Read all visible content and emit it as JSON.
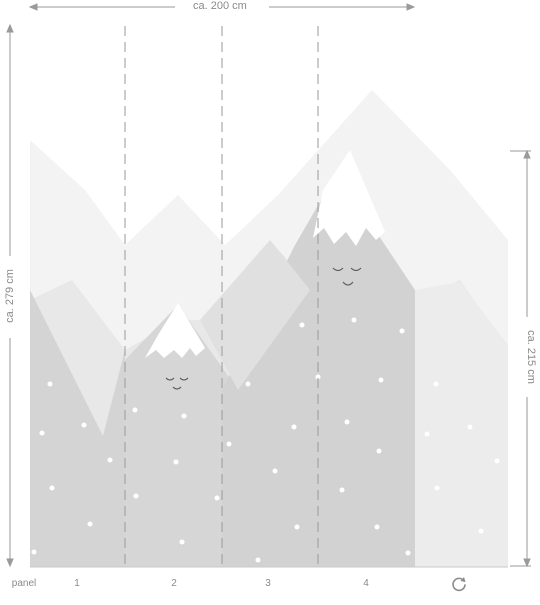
{
  "dimensions": {
    "width_label": "ca. 200 cm",
    "height_label": "ca. 279 cm",
    "right_height_label": "ca. 215 cm"
  },
  "panels": {
    "caption": "panel",
    "labels": [
      "1",
      "2",
      "3",
      "4"
    ]
  },
  "actions": {
    "rotate_icon": "rotate-icon"
  },
  "colors": {
    "lightest": "#f2f3f2",
    "light": "#e7e8e7",
    "mid": "#dcdcdc",
    "dark": "#d3d3d3",
    "snow": "#ffffff",
    "guide": "#9a9a9a",
    "face": "#555555"
  }
}
